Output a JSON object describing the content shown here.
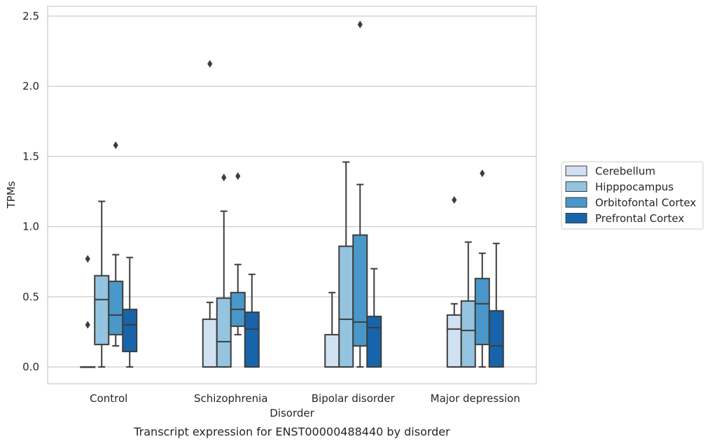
{
  "chart_data": {
    "type": "box",
    "title": "",
    "caption": "Transcript expression for ENST00000488440 by disorder",
    "xlabel": "Disorder",
    "ylabel": "TPMs",
    "ylim": [
      -0.12,
      2.57
    ],
    "yticks": [
      "0.0",
      "0.5",
      "1.0",
      "1.5",
      "2.0",
      "2.5"
    ],
    "grid": "horizontal",
    "legend_position": "right",
    "categories": [
      "Control",
      "Schizophrenia",
      "Bipolar disorder",
      "Major depression"
    ],
    "series": [
      {
        "name": "Cerebellum",
        "color": "#d0e1f2",
        "boxes": [
          {
            "q1": 0.0,
            "median": 0.0,
            "q3": 0.0,
            "whisker_low": 0.0,
            "whisker_high": 0.0,
            "outliers": [
              0.3,
              0.77
            ]
          },
          {
            "q1": 0.0,
            "median": 0.0,
            "q3": 0.34,
            "whisker_low": 0.0,
            "whisker_high": 0.46,
            "outliers": [
              2.16
            ]
          },
          {
            "q1": 0.0,
            "median": 0.0,
            "q3": 0.23,
            "whisker_low": 0.0,
            "whisker_high": 0.53,
            "outliers": []
          },
          {
            "q1": 0.0,
            "median": 0.27,
            "q3": 0.37,
            "whisker_low": 0.0,
            "whisker_high": 0.45,
            "outliers": [
              1.19
            ]
          }
        ]
      },
      {
        "name": "Hipppocampus",
        "color": "#94c4df",
        "boxes": [
          {
            "q1": 0.16,
            "median": 0.48,
            "q3": 0.65,
            "whisker_low": 0.0,
            "whisker_high": 1.18,
            "outliers": []
          },
          {
            "q1": 0.0,
            "median": 0.18,
            "q3": 0.49,
            "whisker_low": 0.0,
            "whisker_high": 1.11,
            "outliers": [
              1.35
            ]
          },
          {
            "q1": 0.0,
            "median": 0.34,
            "q3": 0.86,
            "whisker_low": 0.0,
            "whisker_high": 1.46,
            "outliers": []
          },
          {
            "q1": 0.0,
            "median": 0.26,
            "q3": 0.47,
            "whisker_low": 0.0,
            "whisker_high": 0.89,
            "outliers": []
          }
        ]
      },
      {
        "name": "Orbitofontal Cortex",
        "color": "#4a98c9",
        "boxes": [
          {
            "q1": 0.23,
            "median": 0.37,
            "q3": 0.61,
            "whisker_low": 0.15,
            "whisker_high": 0.8,
            "outliers": [
              1.58
            ]
          },
          {
            "q1": 0.29,
            "median": 0.41,
            "q3": 0.53,
            "whisker_low": 0.23,
            "whisker_high": 0.73,
            "outliers": [
              1.36
            ]
          },
          {
            "q1": 0.15,
            "median": 0.32,
            "q3": 0.94,
            "whisker_low": 0.0,
            "whisker_high": 1.3,
            "outliers": [
              2.44
            ]
          },
          {
            "q1": 0.16,
            "median": 0.45,
            "q3": 0.63,
            "whisker_low": 0.0,
            "whisker_high": 0.81,
            "outliers": [
              1.38
            ]
          }
        ]
      },
      {
        "name": "Prefrontal Cortex",
        "color": "#1764ab",
        "boxes": [
          {
            "q1": 0.11,
            "median": 0.3,
            "q3": 0.41,
            "whisker_low": 0.0,
            "whisker_high": 0.78,
            "outliers": []
          },
          {
            "q1": 0.0,
            "median": 0.27,
            "q3": 0.39,
            "whisker_low": 0.0,
            "whisker_high": 0.66,
            "outliers": []
          },
          {
            "q1": 0.0,
            "median": 0.28,
            "q3": 0.36,
            "whisker_low": 0.0,
            "whisker_high": 0.7,
            "outliers": []
          },
          {
            "q1": 0.0,
            "median": 0.15,
            "q3": 0.4,
            "whisker_low": 0.0,
            "whisker_high": 0.88,
            "outliers": []
          }
        ]
      }
    ]
  }
}
